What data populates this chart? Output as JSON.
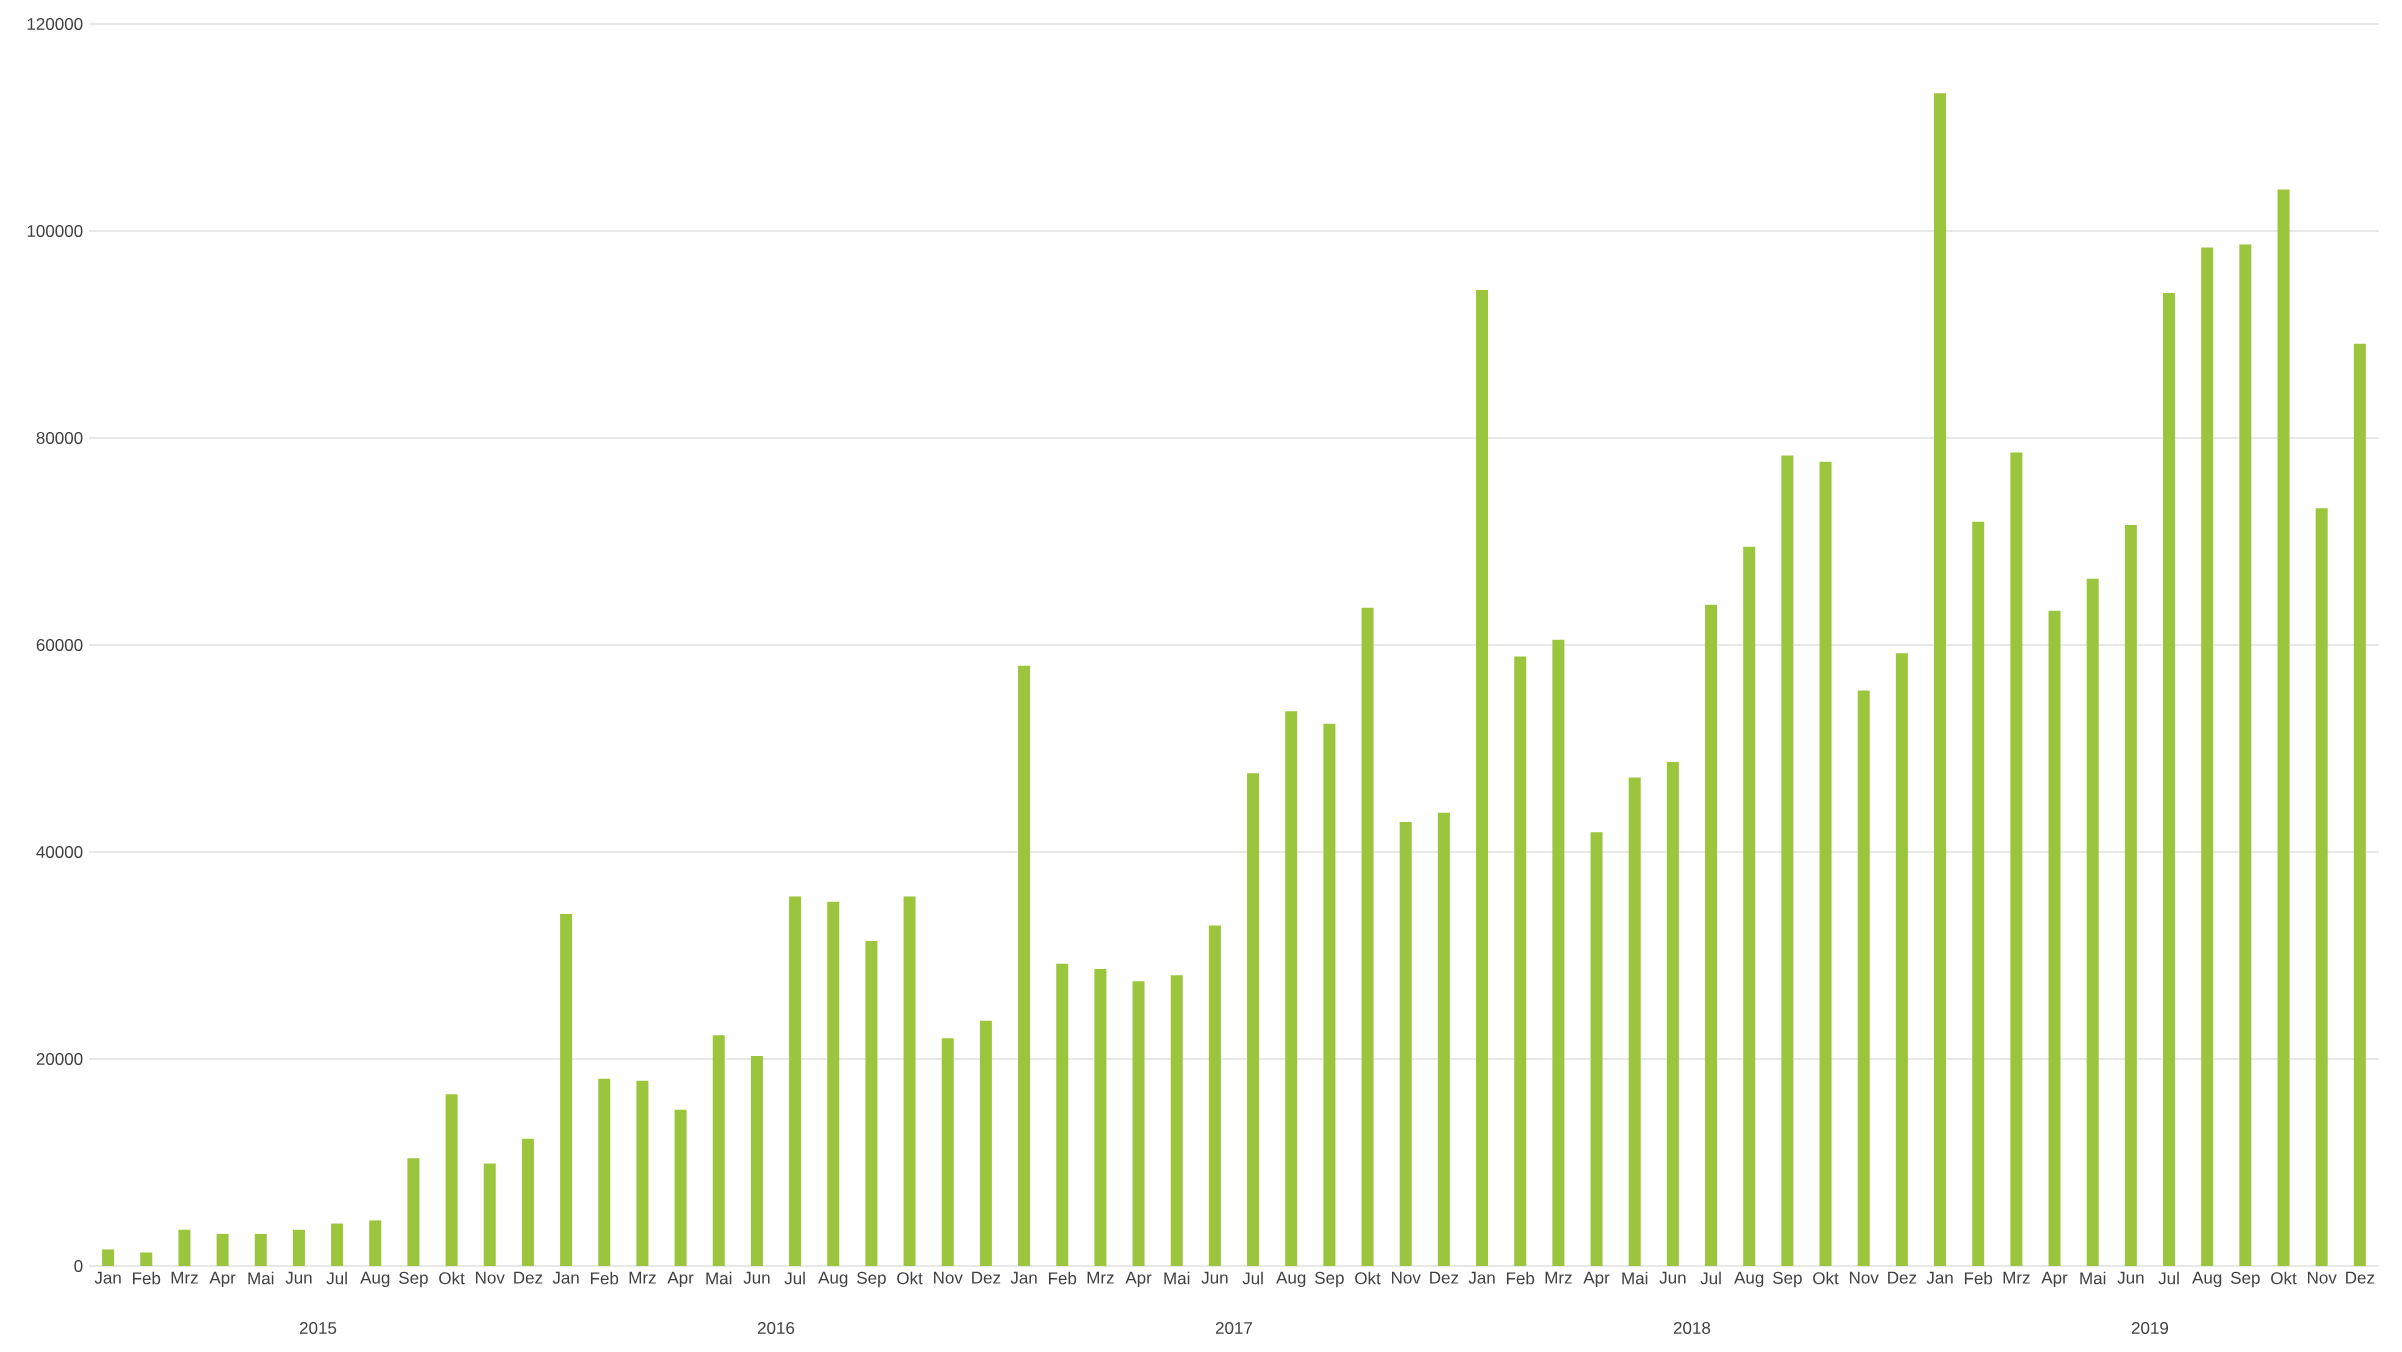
{
  "chart_data": {
    "type": "bar",
    "categories": [
      "Jan",
      "Feb",
      "Mrz",
      "Apr",
      "Mai",
      "Jun",
      "Jul",
      "Aug",
      "Sep",
      "Okt",
      "Nov",
      "Dez",
      "Jan",
      "Feb",
      "Mrz",
      "Apr",
      "Mai",
      "Jun",
      "Jul",
      "Aug",
      "Sep",
      "Okt",
      "Nov",
      "Dez",
      "Jan",
      "Feb",
      "Mrz",
      "Apr",
      "Mai",
      "Jun",
      "Jul",
      "Aug",
      "Sep",
      "Okt",
      "Nov",
      "Dez",
      "Jan",
      "Feb",
      "Mrz",
      "Apr",
      "Mai",
      "Jun",
      "Jul",
      "Aug",
      "Sep",
      "Okt",
      "Nov",
      "Dez",
      "Jan",
      "Feb",
      "Mrz",
      "Apr",
      "Mai",
      "Jun",
      "Jul",
      "Aug",
      "Sep",
      "Okt",
      "Nov",
      "Dez"
    ],
    "values": [
      1600,
      1300,
      3500,
      3100,
      3100,
      3500,
      4100,
      4400,
      10400,
      16600,
      9900,
      12300,
      34000,
      18100,
      17900,
      15100,
      22300,
      20300,
      35700,
      35200,
      31400,
      35700,
      22000,
      23700,
      58000,
      29200,
      28700,
      27500,
      28100,
      32900,
      47600,
      53600,
      52400,
      63600,
      42900,
      43800,
      94300,
      58900,
      60500,
      41900,
      47200,
      48700,
      63900,
      69500,
      78300,
      77700,
      55600,
      59200,
      113300,
      71900,
      78600,
      63300,
      66400,
      71600,
      94000,
      98400,
      98700,
      104000,
      73200,
      89100
    ],
    "color": "#9bc53d",
    "ylim": [
      0,
      120000
    ],
    "yticks": [
      0,
      20000,
      40000,
      60000,
      80000,
      100000,
      120000
    ],
    "grid": "y",
    "annotations": [
      "2015",
      "2016",
      "2017",
      "2018",
      "2019"
    ]
  }
}
